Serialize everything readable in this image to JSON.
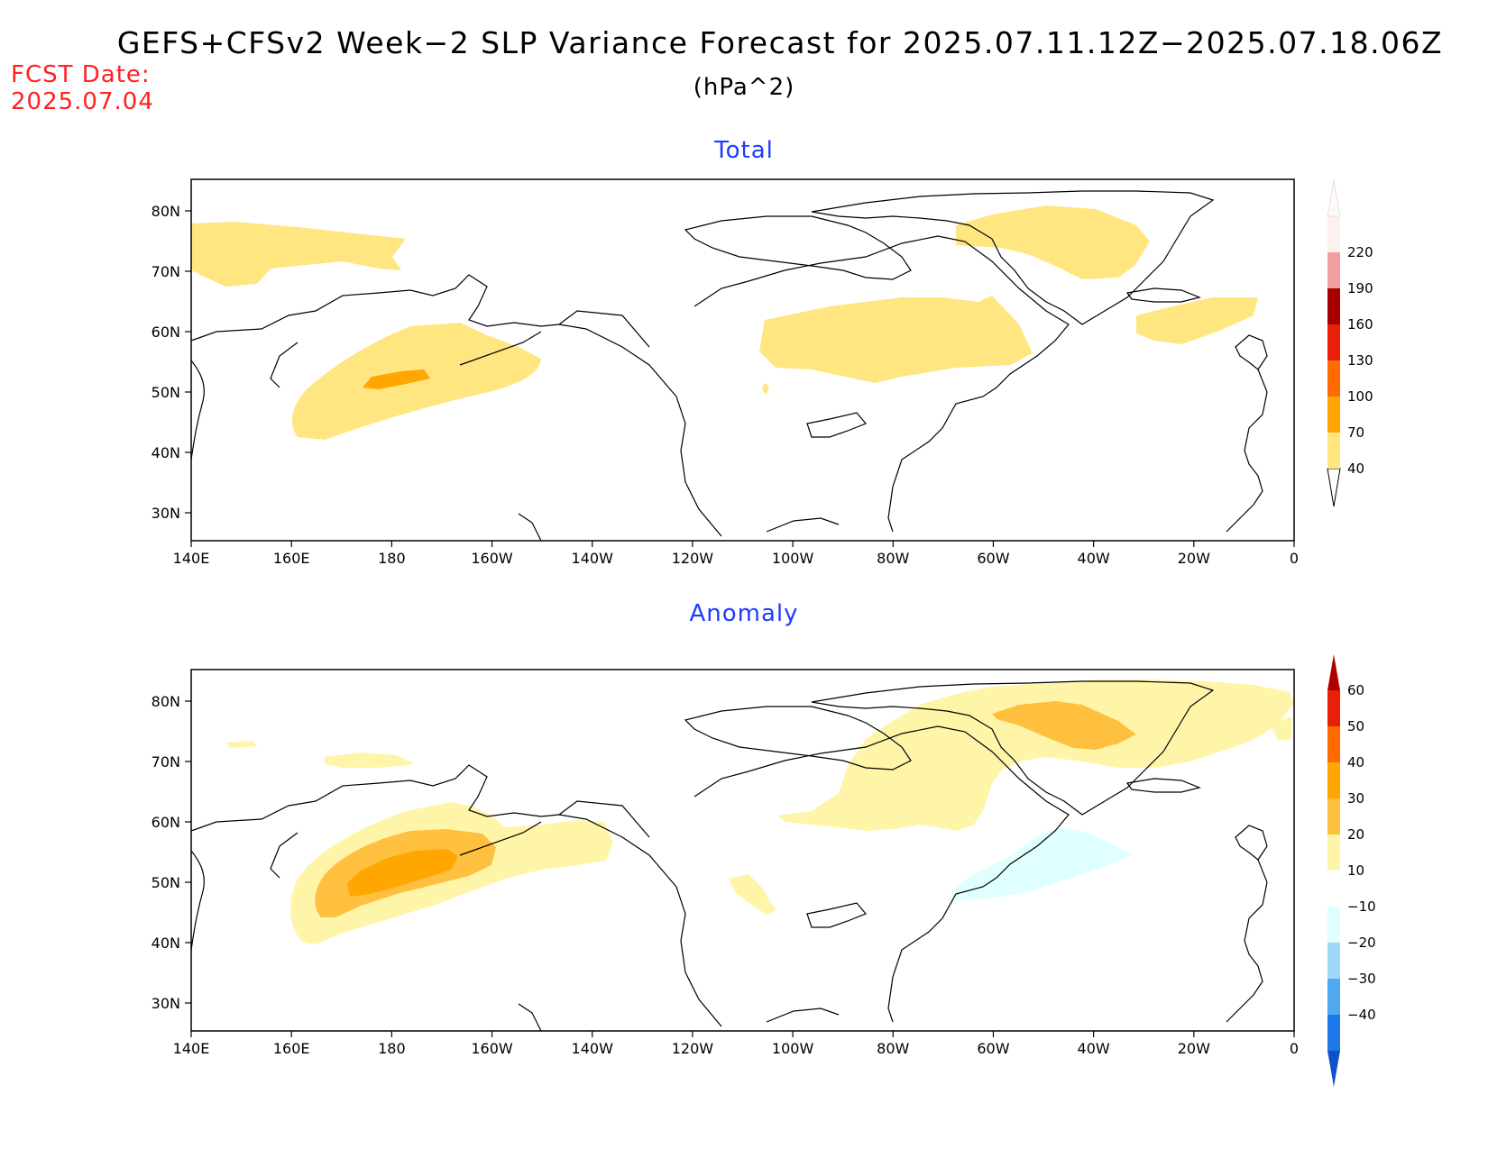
{
  "header": {
    "title": "GEFS+CFSv2 Week−2 SLP Variance Forecast for 2025.07.11.12Z−2025.07.18.06Z",
    "units": "(hPa^2)",
    "fcst_label": "FCST Date:",
    "fcst_date": "2025.07.04"
  },
  "map_axes": {
    "lon_ticks": [
      "140E",
      "160E",
      "180",
      "160W",
      "140W",
      "120W",
      "100W",
      "80W",
      "60W",
      "40W",
      "20W",
      "0"
    ],
    "lat_ticks": [
      "80N",
      "70N",
      "60N",
      "50N",
      "40N",
      "30N"
    ]
  },
  "panels": [
    {
      "title": "Total",
      "colorbar": {
        "labels": [
          "40",
          "70",
          "100",
          "130",
          "160",
          "190",
          "220"
        ],
        "colors": [
          "#ffe680",
          "#ffa600",
          "#ff6b00",
          "#e8200a",
          "#a60000",
          "#f0a0a0",
          "#fff0f0"
        ]
      }
    },
    {
      "title": "Anomaly",
      "colorbar": {
        "labels": [
          "60",
          "50",
          "40",
          "30",
          "20",
          "10",
          "−10",
          "−20",
          "−30",
          "−40"
        ],
        "colors": [
          "#b00000",
          "#e8200a",
          "#ff6b00",
          "#ffa600",
          "#ffc040",
          "#fff5a8",
          "#ffffff",
          "#e0ffff",
          "#a0d8f8",
          "#50a8f0",
          "#1e78e8",
          "#1050c8"
        ]
      }
    }
  ],
  "colors": {
    "total_40": "#ffe680",
    "total_70": "#ffa600",
    "anom_10": "#fff5a8",
    "anom_20": "#ffc040",
    "anom_30": "#ffa600",
    "anom_neg10": "#e0ffff",
    "title_blue": "#1f3bff",
    "fcst_red": "#ff2020"
  }
}
